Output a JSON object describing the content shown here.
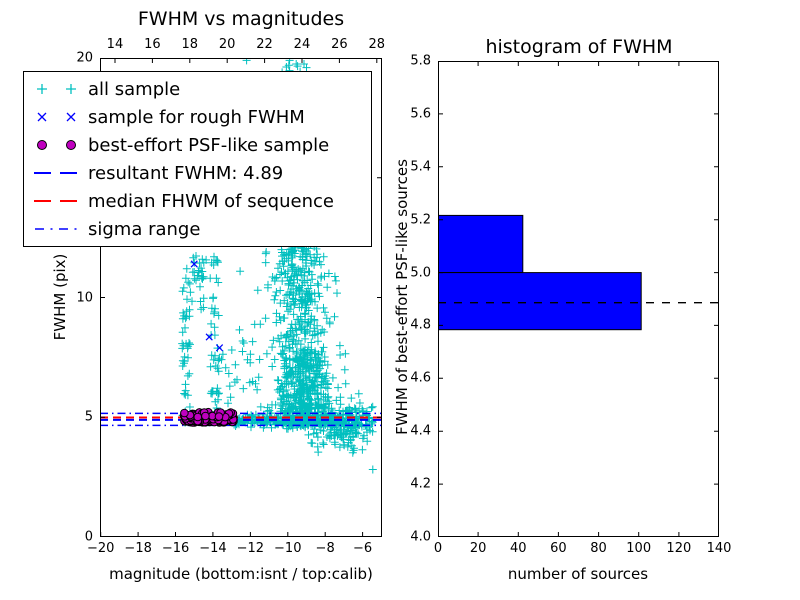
{
  "figure": {
    "background": "#ffffff"
  },
  "colors": {
    "all_sample": "#00bfbf",
    "rough_sample": "#0000ff",
    "psf_sample": "#bf00bf",
    "psf_sample_edge": "#000000",
    "resultant_line": "#0000ff",
    "median_line": "#ff0000",
    "sigma_line": "#0000ff",
    "hist_bar": "#0000ff",
    "hist_bar_edge": "#000000",
    "hist_dashed_line": "#000000",
    "axes": "#000000"
  },
  "chart_data": [
    {
      "type": "scatter",
      "title": "FWHM vs magnitudes",
      "xlabel": "magnitude (bottom:isnt / top:calib)",
      "ylabel": "FWHM (pix)",
      "xlim": [
        -20.04,
        -4.96
      ],
      "ylim": [
        0,
        20
      ],
      "top_axis_lim": [
        13.2,
        28.28
      ],
      "grid": false,
      "legend_position": "upper left",
      "x_ticks": [
        -20,
        -18,
        -16,
        -14,
        -12,
        -10,
        -8,
        -6
      ],
      "x_tick_labels": [
        "−20",
        "−18",
        "−16",
        "−14",
        "−12",
        "−10",
        "−8",
        "−6"
      ],
      "top_ticks": [
        14,
        16,
        18,
        20,
        22,
        24,
        26,
        28
      ],
      "top_tick_labels": [
        "14",
        "16",
        "18",
        "20",
        "22",
        "24",
        "26",
        "28"
      ],
      "y_ticks": [
        0,
        5,
        10,
        15,
        20
      ],
      "y_tick_labels": [
        "0",
        "5",
        "10",
        "15",
        "20"
      ],
      "legend_items": [
        {
          "marker": "plus",
          "color_key": "all_sample",
          "label": "all sample"
        },
        {
          "marker": "x",
          "color_key": "rough_sample",
          "label": "sample for rough FWHM"
        },
        {
          "marker": "circle",
          "color_key": "psf_sample",
          "label": "best-effort PSF-like sample"
        },
        {
          "marker": "dashed",
          "color_key": "resultant_line",
          "label": "resultant FWHM: 4.89"
        },
        {
          "marker": "dashed",
          "color_key": "median_line",
          "label": "median FHWM of sequence"
        },
        {
          "marker": "dashdot",
          "color_key": "sigma_line",
          "label": "sigma range"
        }
      ],
      "series": [
        {
          "name": "all sample",
          "marker": "plus",
          "color_key": "all_sample",
          "clusters": [
            {
              "n": 46,
              "x": {
                "u": [
                  -15.65,
                  -15.2
                ]
              },
              "y": {
                "u": [
                  4.6,
                  10.9
                ]
              }
            },
            {
              "n": 26,
              "x": {
                "u": [
                  -15.15,
                  -14.35
                ]
              },
              "y": {
                "u": [
                  9.4,
                  11.8
                ]
              }
            },
            {
              "n": 42,
              "x": {
                "u": [
                  -14.15,
                  -13.65
                ]
              },
              "y": {
                "u": [
                  4.9,
                  12.1
                ]
              }
            },
            {
              "n": 26,
              "x": {
                "u": [
                  -13.55,
                  -11.4
                ]
              },
              "y": {
                "u": [
                  4.7,
                  9.6
                ]
              }
            },
            {
              "n": 120,
              "x": {
                "n": [
                  -9.4,
                  0.55
                ]
              },
              "y": {
                "p": [
                  12,
                  19.9,
                  1.7
                ]
              }
            },
            {
              "n": 250,
              "x": {
                "n": [
                  -9.3,
                  0.75
                ]
              },
              "y": {
                "u": [
                  8,
                  12
                ]
              }
            },
            {
              "n": 400,
              "x": {
                "n": [
                  -9.1,
                  0.85
                ]
              },
              "y": {
                "p": [
                  5.2,
                  8.0,
                  1.35
                ]
              }
            },
            {
              "n": 330,
              "x": {
                "n": [
                  -9.0,
                  1.1
                ]
              },
              "y": {
                "n": [
                  4.88,
                  0.16
                ]
              }
            },
            {
              "n": 85,
              "x": {
                "u": [
                  -12.95,
                  -10.95
                ]
              },
              "y": {
                "n": [
                  4.87,
                  0.09
                ]
              }
            },
            {
              "n": 110,
              "x": {
                "u": [
                  -7.7,
                  -5.45
                ]
              },
              "y": {
                "n": [
                  4.85,
                  0.38
                ]
              }
            },
            {
              "n": 50,
              "x": {
                "u": [
                  -8.9,
                  -6.3
                ]
              },
              "y": {
                "u": [
                  3.5,
                  4.5
                ]
              }
            }
          ],
          "points": [
            [
              -12.2,
              19.95
            ],
            [
              -9.9,
              19.9
            ],
            [
              -9.55,
              19.75
            ],
            [
              -10.3,
              19.4
            ],
            [
              -10.9,
              18.3
            ],
            [
              -10.6,
              16.2
            ],
            [
              -11.3,
              14.8
            ],
            [
              -10.85,
              13.5
            ],
            [
              -11.15,
              11.9
            ],
            [
              -11.6,
              10.3
            ],
            [
              -12.55,
              11.1
            ],
            [
              -12.35,
              8.1
            ],
            [
              -12.15,
              7.4
            ],
            [
              -13.1,
              6.3
            ],
            [
              -15.4,
              11.2
            ],
            [
              -9.0,
              19.6
            ],
            [
              -8.6,
              18.9
            ],
            [
              -8.75,
              16.4
            ],
            [
              -8.3,
              14.2
            ],
            [
              -8.05,
              12.6
            ],
            [
              -7.8,
              11.0
            ],
            [
              -7.5,
              9.2
            ],
            [
              -7.2,
              7.6
            ],
            [
              -6.9,
              6.4
            ],
            [
              -6.6,
              5.8
            ],
            [
              -6.3,
              5.2
            ],
            [
              -6.05,
              4.7
            ],
            [
              -5.75,
              4.0
            ],
            [
              -5.6,
              4.45
            ],
            [
              -5.45,
              2.82
            ]
          ]
        },
        {
          "name": "sample for rough FWHM",
          "marker": "x",
          "color_key": "rough_sample",
          "clusters": [
            {
              "n": 30,
              "x": {
                "u": [
                  -15.5,
                  -12.95
                ]
              },
              "y": {
                "n": [
                  4.98,
                  0.09
                ]
              },
              "yclip": [
                4.8,
                5.17
              ]
            }
          ],
          "points": [
            [
              -15.0,
              11.4
            ],
            [
              -14.2,
              8.35
            ],
            [
              -13.65,
              7.9
            ]
          ]
        },
        {
          "name": "best-effort PSF-like sample",
          "marker": "circle",
          "color_key": "psf_sample",
          "clusters": [
            {
              "n": 101,
              "x": {
                "u": [
                  -15.55,
                  -12.9
                ]
              },
              "y": {
                "u": [
                  4.784,
                  5.0
                ]
              }
            },
            {
              "n": 42,
              "x": {
                "u": [
                  -15.55,
                  -12.9
                ]
              },
              "y": {
                "p": [
                  5.0,
                  5.216,
                  1.4
                ]
              }
            }
          ],
          "points": []
        }
      ],
      "hlines": [
        {
          "name": "sigma range upper",
          "y": 5.16,
          "color_key": "sigma_line",
          "style": "dashdot"
        },
        {
          "name": "median FHWM of sequence",
          "y": 4.99,
          "color_key": "median_line",
          "style": "dashed"
        },
        {
          "name": "resultant FWHM",
          "y": 4.89,
          "color_key": "resultant_line",
          "style": "dashed"
        },
        {
          "name": "sigma range lower",
          "y": 4.66,
          "color_key": "sigma_line",
          "style": "dashdot"
        }
      ]
    },
    {
      "type": "bar",
      "orientation": "horizontal",
      "title": "histogram of FWHM",
      "xlabel": "number of sources",
      "ylabel": "FWHM of best-effort PSF-like sources",
      "xlim": [
        0,
        140
      ],
      "ylim": [
        4.0,
        5.8
      ],
      "grid": false,
      "x_ticks": [
        0,
        20,
        40,
        60,
        80,
        100,
        120,
        140
      ],
      "x_tick_labels": [
        "0",
        "20",
        "40",
        "60",
        "80",
        "100",
        "120",
        "140"
      ],
      "y_ticks": [
        4.0,
        4.2,
        4.4,
        4.6,
        4.8,
        5.0,
        5.2,
        5.4,
        5.6,
        5.8
      ],
      "y_tick_labels": [
        "4.0",
        "4.2",
        "4.4",
        "4.6",
        "4.8",
        "5.0",
        "5.2",
        "5.4",
        "5.6",
        "5.8"
      ],
      "bins": [
        {
          "from": 4.784,
          "to": 5.0,
          "count": 101
        },
        {
          "from": 5.0,
          "to": 5.216,
          "count": 42
        }
      ],
      "dashed_line_y": 4.886
    }
  ]
}
